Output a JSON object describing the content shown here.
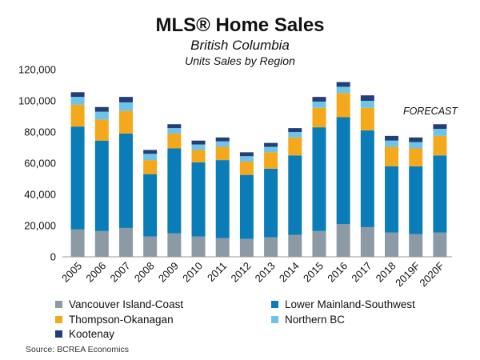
{
  "chart_data": {
    "type": "bar",
    "stacked": true,
    "title": "MLS® Home Sales",
    "subtitle": "British Columbia",
    "subtitle2": "Units Sales by Region",
    "annotation": "FORECAST",
    "source": "Source: BCREA Economics",
    "ylim": [
      0,
      120000
    ],
    "yticks": [
      0,
      20000,
      40000,
      60000,
      80000,
      100000,
      120000
    ],
    "ytick_labels": [
      "0",
      "20,000",
      "40,000",
      "60,000",
      "80,000",
      "100,000",
      "120,000"
    ],
    "categories": [
      "2005",
      "2006",
      "2007",
      "2008",
      "2009",
      "2010",
      "2011",
      "2012",
      "2013",
      "2014",
      "2015",
      "2016",
      "2017",
      "2018",
      "2019F",
      "2020F"
    ],
    "legend_position": "bottom",
    "series": [
      {
        "name": "Vancouver Island-Coast",
        "color": "#8c9aa6",
        "values": [
          17500,
          16500,
          18500,
          13000,
          15000,
          13000,
          12000,
          11500,
          12500,
          14000,
          16500,
          21000,
          19000,
          15500,
          14500,
          15500
        ]
      },
      {
        "name": "Lower Mainland-Southwest",
        "color": "#0a7db8",
        "values": [
          66000,
          58000,
          60500,
          40000,
          54500,
          47500,
          50000,
          41000,
          44000,
          51000,
          66500,
          68500,
          62000,
          42500,
          43500,
          49500
        ]
      },
      {
        "name": "Thompson-Okanagan",
        "color": "#f4a81c",
        "values": [
          14000,
          13500,
          14500,
          9000,
          9500,
          8000,
          8500,
          8500,
          10500,
          11500,
          12500,
          15500,
          14500,
          12500,
          11500,
          12500
        ]
      },
      {
        "name": "Northern BC",
        "color": "#6ec4e8",
        "values": [
          5000,
          5000,
          5500,
          4000,
          3500,
          3500,
          3500,
          3500,
          3500,
          3500,
          4000,
          4000,
          4500,
          4000,
          4000,
          4500
        ]
      },
      {
        "name": "Kootenay",
        "color": "#233e78",
        "values": [
          3000,
          3000,
          3500,
          2500,
          2500,
          2500,
          2500,
          2500,
          2500,
          2500,
          3000,
          3000,
          3500,
          3000,
          3000,
          3000
        ]
      }
    ]
  }
}
